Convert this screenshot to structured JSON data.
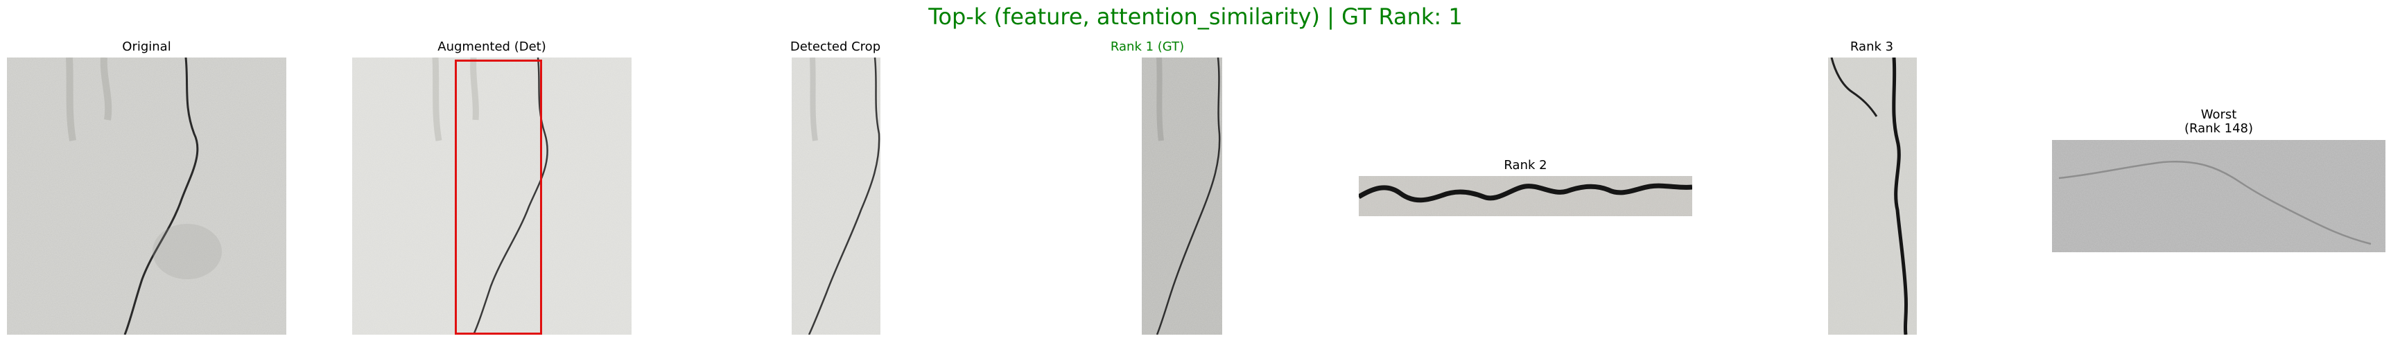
{
  "figure": {
    "title": "Top-k (feature, attention_similarity) | GT Rank: 1",
    "title_color": "#008000",
    "text_color": "#000000",
    "gt_color": "#008000",
    "box_color": "#e01010"
  },
  "panels": [
    {
      "id": "original",
      "title": "Original",
      "image": "concrete-wall-crack"
    },
    {
      "id": "augmented",
      "title": "Augmented (Det)",
      "image": "concrete-wall-crack-with-detection-box"
    },
    {
      "id": "detected",
      "title": "Detected Crop",
      "image": "cropped-crack-strip"
    },
    {
      "id": "rank1",
      "title": "Rank 1 (GT)",
      "image": "crack-strip-ground-truth"
    },
    {
      "id": "rank2",
      "title": "Rank 2",
      "image": "horizontal-crack"
    },
    {
      "id": "rank3",
      "title": "Rank 3",
      "image": "vertical-wide-crack"
    },
    {
      "id": "worst",
      "title_line1": "Worst",
      "title_line2": "(Rank 148)",
      "image": "faint-crack-wall"
    }
  ]
}
